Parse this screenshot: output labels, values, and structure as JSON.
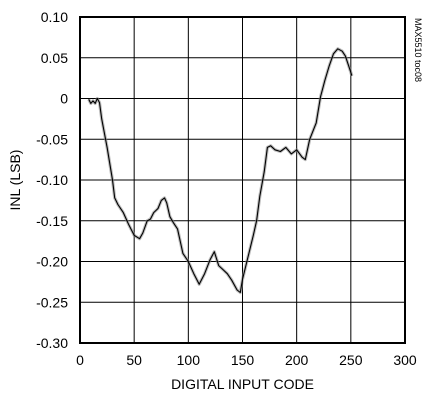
{
  "chart_data": {
    "type": "line",
    "xlabel": "DIGITAL INPUT CODE",
    "ylabel": "INL (LSB)",
    "side_label": "MAX5510 toc08",
    "xlim": [
      0,
      300
    ],
    "ylim": [
      -0.3,
      0.1
    ],
    "xticks": [
      0,
      50,
      100,
      150,
      200,
      250,
      300
    ],
    "yticks": [
      {
        "value": 0.1,
        "label": "0.10"
      },
      {
        "value": 0.05,
        "label": "0.05"
      },
      {
        "value": 0,
        "label": "0"
      },
      {
        "value": -0.05,
        "label": "-0.05"
      },
      {
        "value": -0.1,
        "label": "-0.10"
      },
      {
        "value": -0.15,
        "label": "-0.15"
      },
      {
        "value": -0.2,
        "label": "-0.20"
      },
      {
        "value": -0.25,
        "label": "-0.25"
      },
      {
        "value": -0.3,
        "label": "-0.30"
      }
    ],
    "grid": true,
    "series": [
      {
        "color": "#000000",
        "points": [
          [
            8,
            -0.001
          ],
          [
            10,
            -0.006
          ],
          [
            12,
            -0.003
          ],
          [
            14,
            -0.006
          ],
          [
            16,
            0.0
          ],
          [
            18,
            -0.005
          ],
          [
            20,
            -0.025
          ],
          [
            25,
            -0.06
          ],
          [
            30,
            -0.1
          ],
          [
            32,
            -0.122
          ],
          [
            35,
            -0.13
          ],
          [
            40,
            -0.14
          ],
          [
            45,
            -0.155
          ],
          [
            50,
            -0.168
          ],
          [
            55,
            -0.172
          ],
          [
            58,
            -0.165
          ],
          [
            62,
            -0.15
          ],
          [
            65,
            -0.148
          ],
          [
            68,
            -0.14
          ],
          [
            72,
            -0.135
          ],
          [
            75,
            -0.125
          ],
          [
            78,
            -0.122
          ],
          [
            80,
            -0.128
          ],
          [
            83,
            -0.145
          ],
          [
            86,
            -0.152
          ],
          [
            90,
            -0.16
          ],
          [
            95,
            -0.19
          ],
          [
            100,
            -0.2
          ],
          [
            105,
            -0.215
          ],
          [
            110,
            -0.228
          ],
          [
            115,
            -0.215
          ],
          [
            120,
            -0.198
          ],
          [
            124,
            -0.188
          ],
          [
            128,
            -0.205
          ],
          [
            132,
            -0.21
          ],
          [
            136,
            -0.215
          ],
          [
            140,
            -0.223
          ],
          [
            145,
            -0.235
          ],
          [
            148,
            -0.238
          ],
          [
            150,
            -0.222
          ],
          [
            155,
            -0.195
          ],
          [
            160,
            -0.168
          ],
          [
            163,
            -0.15
          ],
          [
            166,
            -0.12
          ],
          [
            170,
            -0.09
          ],
          [
            173,
            -0.06
          ],
          [
            176,
            -0.058
          ],
          [
            180,
            -0.063
          ],
          [
            185,
            -0.065
          ],
          [
            190,
            -0.06
          ],
          [
            195,
            -0.068
          ],
          [
            200,
            -0.063
          ],
          [
            205,
            -0.072
          ],
          [
            208,
            -0.075
          ],
          [
            212,
            -0.05
          ],
          [
            218,
            -0.03
          ],
          [
            222,
            0.002
          ],
          [
            226,
            0.022
          ],
          [
            230,
            0.04
          ],
          [
            234,
            0.055
          ],
          [
            238,
            0.061
          ],
          [
            242,
            0.058
          ],
          [
            245,
            0.052
          ],
          [
            248,
            0.04
          ],
          [
            251,
            0.028
          ]
        ]
      }
    ]
  }
}
